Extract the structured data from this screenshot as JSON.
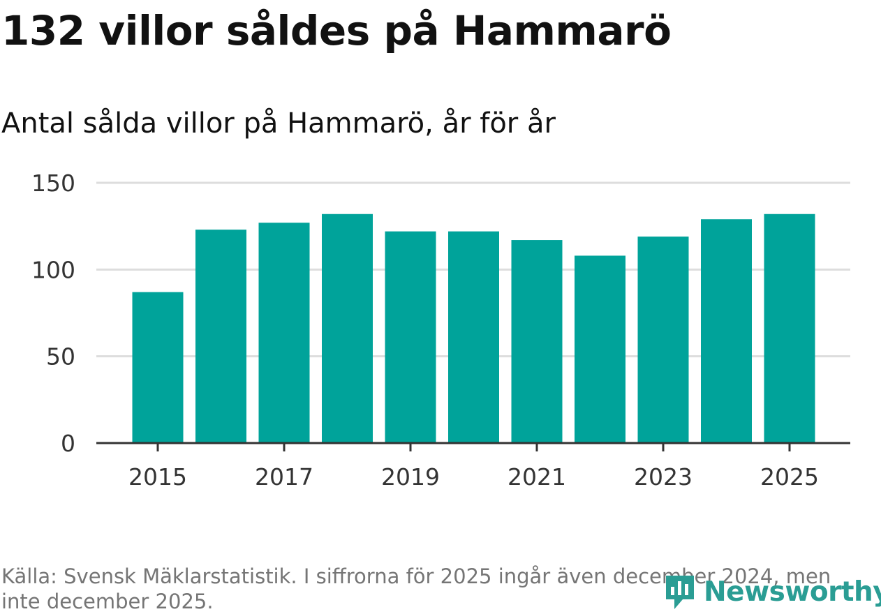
{
  "title": "132 villor såldes på Hammarö",
  "subtitle": "Antal sålda villor på Hammarö, år för år",
  "source": "Källa: Svensk Mäklarstatistik. I siffrorna för 2025 ingår även december 2024, men inte december 2025.",
  "brand": "Newsworthy",
  "colors": {
    "bar": "#00a39a",
    "grid": "#dddddd",
    "axis": "#333333",
    "brand": "#2a9d94",
    "source": "#757575"
  },
  "chart_data": {
    "type": "bar",
    "title": "Antal sålda villor på Hammarö, år för år",
    "categories": [
      "2015",
      "2016",
      "2017",
      "2018",
      "2019",
      "2020",
      "2021",
      "2022",
      "2023",
      "2024",
      "2025"
    ],
    "values": [
      87,
      123,
      127,
      132,
      122,
      122,
      117,
      108,
      119,
      129,
      132
    ],
    "xlabel": "",
    "ylabel": "",
    "ylim": [
      0,
      150
    ],
    "yticks": [
      "0",
      "50",
      "100",
      "150"
    ],
    "xtick_labels": [
      "2015",
      "2017",
      "2019",
      "2021",
      "2023",
      "2025"
    ],
    "grid": true
  }
}
